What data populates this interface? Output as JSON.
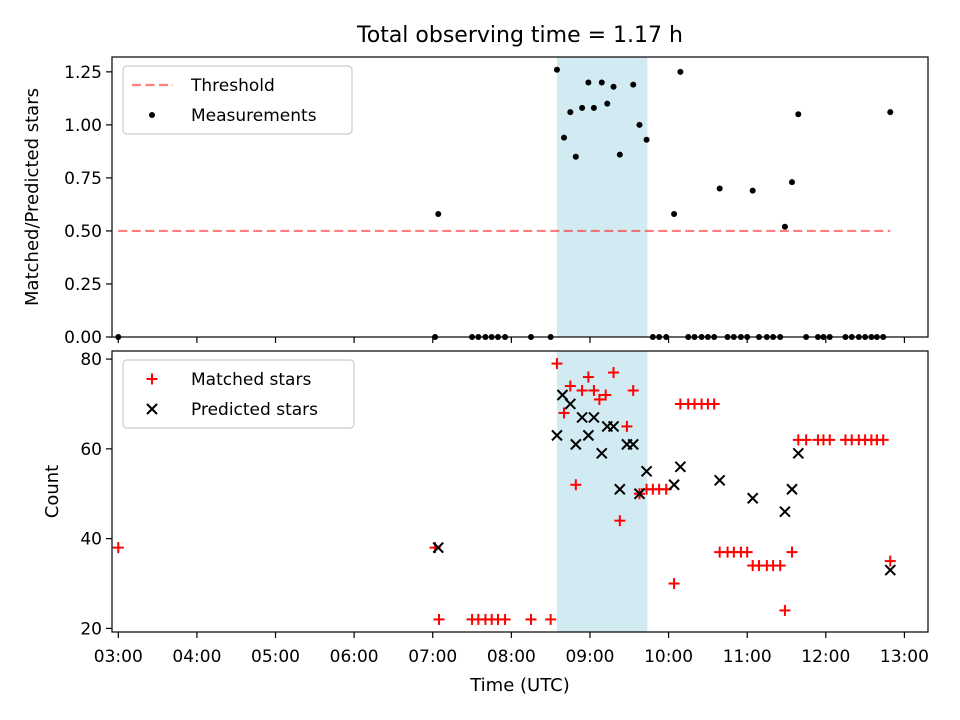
{
  "chart_data": {
    "title": "Total observing time = 1.17 h",
    "xlabel": "Time (UTC)",
    "x_unit": "hours UTC",
    "xlim": [
      2.92,
      13.3
    ],
    "xticks": [
      3,
      4,
      5,
      6,
      7,
      8,
      9,
      10,
      11,
      12,
      13
    ],
    "xtick_labels": [
      "03:00",
      "04:00",
      "05:00",
      "06:00",
      "07:00",
      "08:00",
      "09:00",
      "10:00",
      "11:00",
      "12:00",
      "13:00"
    ],
    "shaded_span": {
      "start": 8.58,
      "end": 9.73,
      "color": "#add8e6"
    },
    "panels": [
      {
        "type": "scatter",
        "ylabel": "Matched/Predicted stars",
        "ylim": [
          0,
          1.32
        ],
        "yticks": [
          0,
          0.25,
          0.5,
          0.75,
          1.0,
          1.25
        ],
        "ytick_labels": [
          "0.00",
          "0.25",
          "0.50",
          "0.75",
          "1.00",
          "1.25"
        ],
        "legend_position": "upper-left",
        "threshold": {
          "name": "Threshold",
          "value": 0.5,
          "x_range": [
            3.0,
            12.82
          ],
          "color": "#ff0000",
          "alpha": 0.5,
          "style": "dashed"
        },
        "series": [
          {
            "name": "Measurements",
            "marker": "dot",
            "color": "#000000",
            "points": [
              [
                3.0,
                0.0
              ],
              [
                7.03,
                0.0
              ],
              [
                7.07,
                0.58
              ],
              [
                7.5,
                0.0
              ],
              [
                7.58,
                0.0
              ],
              [
                7.67,
                0.0
              ],
              [
                7.75,
                0.0
              ],
              [
                7.83,
                0.0
              ],
              [
                7.92,
                0.0
              ],
              [
                8.25,
                0.0
              ],
              [
                8.5,
                0.0
              ],
              [
                8.58,
                1.26
              ],
              [
                8.67,
                0.94
              ],
              [
                8.75,
                1.06
              ],
              [
                8.82,
                0.85
              ],
              [
                8.9,
                1.08
              ],
              [
                8.98,
                1.2
              ],
              [
                9.05,
                1.08
              ],
              [
                9.15,
                1.2
              ],
              [
                9.22,
                1.1
              ],
              [
                9.3,
                1.18
              ],
              [
                9.38,
                0.86
              ],
              [
                9.55,
                1.19
              ],
              [
                9.63,
                1.0
              ],
              [
                9.72,
                0.93
              ],
              [
                9.8,
                0.0
              ],
              [
                9.88,
                0.0
              ],
              [
                9.97,
                0.0
              ],
              [
                10.07,
                0.58
              ],
              [
                10.15,
                1.25
              ],
              [
                10.25,
                0.0
              ],
              [
                10.33,
                0.0
              ],
              [
                10.42,
                0.0
              ],
              [
                10.5,
                0.0
              ],
              [
                10.58,
                0.0
              ],
              [
                10.65,
                0.7
              ],
              [
                10.75,
                0.0
              ],
              [
                10.83,
                0.0
              ],
              [
                10.92,
                0.0
              ],
              [
                11.0,
                0.0
              ],
              [
                11.07,
                0.69
              ],
              [
                11.15,
                0.0
              ],
              [
                11.25,
                0.0
              ],
              [
                11.33,
                0.0
              ],
              [
                11.42,
                0.0
              ],
              [
                11.48,
                0.52
              ],
              [
                11.57,
                0.73
              ],
              [
                11.65,
                1.05
              ],
              [
                11.75,
                0.0
              ],
              [
                11.9,
                0.0
              ],
              [
                11.97,
                0.0
              ],
              [
                12.05,
                0.0
              ],
              [
                12.25,
                0.0
              ],
              [
                12.33,
                0.0
              ],
              [
                12.42,
                0.0
              ],
              [
                12.5,
                0.0
              ],
              [
                12.58,
                0.0
              ],
              [
                12.65,
                0.0
              ],
              [
                12.73,
                0.0
              ],
              [
                12.82,
                1.06
              ]
            ]
          }
        ]
      },
      {
        "type": "scatter",
        "ylabel": "Count",
        "ylim": [
          19.2,
          81.8
        ],
        "yticks": [
          20,
          40,
          60,
          80
        ],
        "ytick_labels": [
          "20",
          "40",
          "60",
          "80"
        ],
        "legend_position": "upper-left",
        "series": [
          {
            "name": "Matched stars",
            "marker": "plus",
            "color": "#ff0000",
            "points": [
              [
                3.0,
                38
              ],
              [
                7.03,
                38
              ],
              [
                7.08,
                22
              ],
              [
                7.5,
                22
              ],
              [
                7.58,
                22
              ],
              [
                7.67,
                22
              ],
              [
                7.75,
                22
              ],
              [
                7.83,
                22
              ],
              [
                7.92,
                22
              ],
              [
                8.25,
                22
              ],
              [
                8.5,
                22
              ],
              [
                8.58,
                79
              ],
              [
                8.67,
                68
              ],
              [
                8.75,
                74
              ],
              [
                8.82,
                52
              ],
              [
                8.9,
                73
              ],
              [
                8.98,
                76
              ],
              [
                9.05,
                73
              ],
              [
                9.12,
                71
              ],
              [
                9.2,
                72
              ],
              [
                9.3,
                77
              ],
              [
                9.38,
                44
              ],
              [
                9.47,
                65
              ],
              [
                9.55,
                73
              ],
              [
                9.63,
                50
              ],
              [
                9.72,
                51
              ],
              [
                9.8,
                51
              ],
              [
                9.88,
                51
              ],
              [
                9.97,
                51
              ],
              [
                10.07,
                30
              ],
              [
                10.15,
                70
              ],
              [
                10.25,
                70
              ],
              [
                10.33,
                70
              ],
              [
                10.42,
                70
              ],
              [
                10.5,
                70
              ],
              [
                10.58,
                70
              ],
              [
                10.65,
                37
              ],
              [
                10.75,
                37
              ],
              [
                10.83,
                37
              ],
              [
                10.92,
                37
              ],
              [
                11.0,
                37
              ],
              [
                11.07,
                34
              ],
              [
                11.15,
                34
              ],
              [
                11.25,
                34
              ],
              [
                11.33,
                34
              ],
              [
                11.42,
                34
              ],
              [
                11.48,
                24
              ],
              [
                11.57,
                37
              ],
              [
                11.65,
                62
              ],
              [
                11.75,
                62
              ],
              [
                11.9,
                62
              ],
              [
                11.97,
                62
              ],
              [
                12.05,
                62
              ],
              [
                12.25,
                62
              ],
              [
                12.33,
                62
              ],
              [
                12.42,
                62
              ],
              [
                12.5,
                62
              ],
              [
                12.58,
                62
              ],
              [
                12.65,
                62
              ],
              [
                12.73,
                62
              ],
              [
                12.82,
                35
              ]
            ]
          },
          {
            "name": "Predicted stars",
            "marker": "x",
            "color": "#000000",
            "points": [
              [
                7.07,
                38
              ],
              [
                8.58,
                63
              ],
              [
                8.65,
                72
              ],
              [
                8.75,
                70
              ],
              [
                8.82,
                61
              ],
              [
                8.9,
                67
              ],
              [
                8.98,
                63
              ],
              [
                9.05,
                67
              ],
              [
                9.15,
                59
              ],
              [
                9.22,
                65
              ],
              [
                9.3,
                65
              ],
              [
                9.38,
                51
              ],
              [
                9.47,
                61
              ],
              [
                9.55,
                61
              ],
              [
                9.63,
                50
              ],
              [
                9.72,
                55
              ],
              [
                10.07,
                52
              ],
              [
                10.15,
                56
              ],
              [
                10.65,
                53
              ],
              [
                11.07,
                49
              ],
              [
                11.48,
                46
              ],
              [
                11.57,
                51
              ],
              [
                11.65,
                59
              ],
              [
                12.82,
                33
              ]
            ]
          }
        ]
      }
    ]
  }
}
